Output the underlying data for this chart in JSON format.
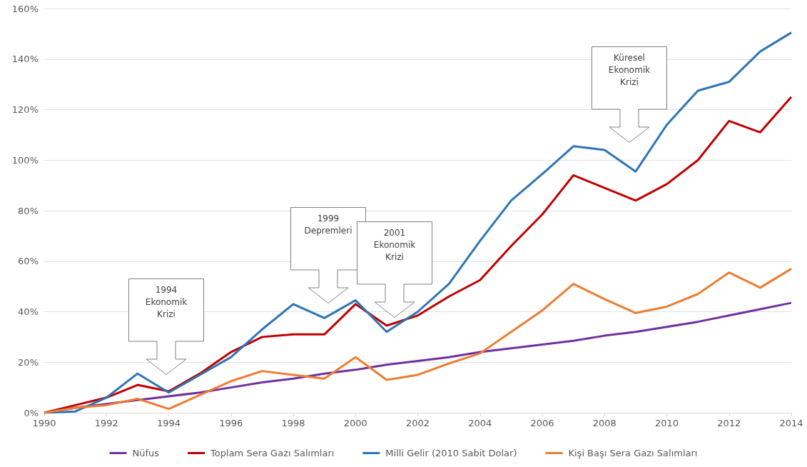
{
  "chart_data": {
    "type": "line",
    "x": [
      1990,
      1991,
      1992,
      1993,
      1994,
      1995,
      1996,
      1997,
      1998,
      1999,
      2000,
      2001,
      2002,
      2003,
      2004,
      2005,
      2006,
      2007,
      2008,
      2009,
      2010,
      2011,
      2012,
      2013,
      2014
    ],
    "series": [
      {
        "name": "Nüfus",
        "color": "#7030a0",
        "values": [
          0,
          2,
          3.5,
          5,
          6.5,
          8,
          10,
          12,
          13.5,
          15.5,
          17,
          19,
          20.5,
          22,
          24,
          25.5,
          27,
          28.5,
          30.5,
          32,
          34,
          36,
          38.5,
          41,
          43.5
        ]
      },
      {
        "name": "Toplam Sera Gazı Salımları",
        "color": "#c00000",
        "values": [
          0,
          3,
          6,
          11,
          8.5,
          15.5,
          24,
          30,
          31,
          31,
          43,
          34.5,
          38.5,
          46,
          52.5,
          66,
          78.5,
          94,
          89,
          84,
          90.5,
          100,
          115.5,
          111,
          125
        ]
      },
      {
        "name": "Milli Gelir (2010 Sabit Dolar)",
        "color": "#2e75b6",
        "values": [
          0,
          0.5,
          6,
          15.5,
          8,
          15,
          22,
          33,
          43,
          37.5,
          44.5,
          32,
          40,
          51,
          68,
          84,
          94.5,
          105.5,
          104,
          95.5,
          114,
          127.5,
          131,
          143,
          150.5
        ]
      },
      {
        "name": "Kişi Başı Sera Gazı Salımları",
        "color": "#ed7d31",
        "values": [
          0,
          2,
          3,
          5.5,
          1.5,
          7,
          12.5,
          16.5,
          15,
          13.5,
          22,
          13,
          15,
          19.5,
          23.5,
          32,
          40.5,
          51,
          45,
          39.5,
          42,
          47,
          55.5,
          49.5,
          57
        ]
      }
    ],
    "xlim": [
      1990,
      2014
    ],
    "xticks": [
      1990,
      1992,
      1994,
      1996,
      1998,
      2000,
      2002,
      2004,
      2006,
      2008,
      2010,
      2012,
      2014
    ],
    "ylim": [
      0,
      160
    ],
    "yticks": [
      {
        "value": 0,
        "label": "0%"
      },
      {
        "value": 20,
        "label": "20%"
      },
      {
        "value": 40,
        "label": "40%"
      },
      {
        "value": 60,
        "label": "60%"
      },
      {
        "value": 80,
        "label": "80%"
      },
      {
        "value": 100,
        "label": "100%"
      },
      {
        "value": 120,
        "label": "120%"
      },
      {
        "value": 140,
        "label": "140%"
      },
      {
        "value": 160,
        "label": "160%"
      }
    ],
    "annotations": [
      "1994 Ekonomik Krizi",
      "1999 Depremleri",
      "2001 Ekonomik Krizi",
      "Küresel Ekonomik Krizi"
    ],
    "grid": "y",
    "legend": "bottom",
    "marker": "none",
    "line_style": "solid"
  }
}
